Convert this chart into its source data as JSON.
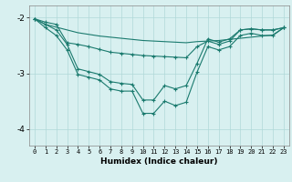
{
  "x": [
    0,
    1,
    2,
    3,
    4,
    5,
    6,
    7,
    8,
    9,
    10,
    11,
    12,
    13,
    14,
    15,
    16,
    17,
    18,
    19,
    20,
    21,
    22,
    23
  ],
  "line1": [
    -2.02,
    -2.12,
    -2.17,
    -2.22,
    -2.27,
    -2.3,
    -2.33,
    -2.35,
    -2.37,
    -2.39,
    -2.41,
    -2.42,
    -2.43,
    -2.44,
    -2.45,
    -2.43,
    -2.42,
    -2.41,
    -2.39,
    -2.37,
    -2.35,
    -2.33,
    -2.31,
    -2.18
  ],
  "line2": [
    -2.02,
    -2.18,
    -2.32,
    -2.58,
    -3.02,
    -3.07,
    -3.12,
    -3.28,
    -3.32,
    -3.32,
    -3.72,
    -3.72,
    -3.5,
    -3.58,
    -3.52,
    -2.98,
    -2.52,
    -2.58,
    -2.52,
    -2.32,
    -2.28,
    -2.32,
    -2.32,
    -2.18
  ],
  "line3": [
    -2.02,
    -2.12,
    -2.22,
    -2.48,
    -2.92,
    -2.97,
    -3.02,
    -3.15,
    -3.18,
    -3.2,
    -3.48,
    -3.48,
    -3.22,
    -3.28,
    -3.22,
    -2.82,
    -2.38,
    -2.44,
    -2.38,
    -2.22,
    -2.2,
    -2.22,
    -2.22,
    -2.18
  ],
  "line4": [
    -2.02,
    -2.08,
    -2.12,
    -2.45,
    -2.48,
    -2.52,
    -2.57,
    -2.62,
    -2.64,
    -2.66,
    -2.68,
    -2.69,
    -2.7,
    -2.71,
    -2.72,
    -2.52,
    -2.42,
    -2.48,
    -2.42,
    -2.22,
    -2.2,
    -2.22,
    -2.22,
    -2.18
  ],
  "color": "#1a7a6e",
  "bg_color": "#d8f0f0",
  "grid_color": "#b0d8d8",
  "xlabel": "Humidex (Indice chaleur)",
  "ylim": [
    -4.3,
    -1.78
  ],
  "yticks": [
    -4,
    -3,
    -2
  ],
  "xlim": [
    -0.5,
    23.5
  ]
}
